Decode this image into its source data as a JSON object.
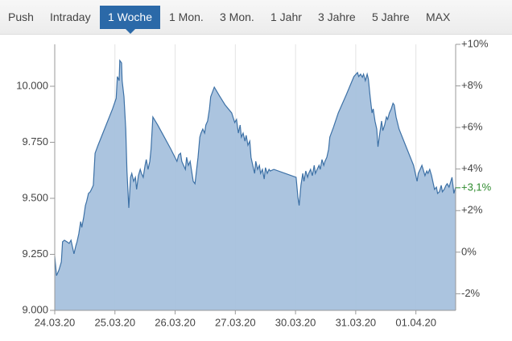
{
  "tabs": {
    "items": [
      "Push",
      "Intraday",
      "1 Woche",
      "1 Mon.",
      "3 Mon.",
      "1 Jahr",
      "3 Jahre",
      "5 Jahre",
      "MAX"
    ],
    "active": 2
  },
  "chart_data": {
    "type": "area",
    "x": [
      0,
      0.03,
      0.07,
      0.11,
      0.13,
      0.16,
      0.2,
      0.24,
      0.27,
      0.29,
      0.32,
      0.35,
      0.37,
      0.4,
      0.43,
      0.45,
      0.48,
      0.51,
      0.53,
      0.56,
      0.59,
      0.61,
      0.64,
      0.67,
      0.72,
      0.8,
      0.88,
      0.96,
      1.02,
      1.04,
      1.07,
      1.08,
      1.11,
      1.12,
      1.15,
      1.18,
      1.2,
      1.23,
      1.26,
      1.28,
      1.31,
      1.34,
      1.36,
      1.39,
      1.42,
      1.44,
      1.47,
      1.5,
      1.52,
      1.55,
      1.58,
      1.6,
      1.63,
      1.71,
      1.82,
      1.93,
      2.03,
      2.06,
      2.09,
      2.11,
      2.14,
      2.17,
      2.19,
      2.22,
      2.25,
      2.27,
      2.3,
      2.33,
      2.35,
      2.38,
      2.41,
      2.43,
      2.46,
      2.49,
      2.51,
      2.54,
      2.57,
      2.59,
      2.65,
      2.73,
      2.83,
      2.94,
      2.99,
      3.02,
      3.05,
      3.08,
      3.1,
      3.13,
      3.16,
      3.18,
      3.21,
      3.24,
      3.26,
      3.29,
      3.32,
      3.34,
      3.37,
      3.4,
      3.42,
      3.45,
      3.48,
      3.5,
      3.53,
      3.56,
      3.58,
      3.64,
      4.01,
      4.04,
      4.06,
      4.09,
      4.12,
      4.14,
      4.17,
      4.2,
      4.22,
      4.25,
      4.28,
      4.31,
      4.33,
      4.36,
      4.39,
      4.41,
      4.44,
      4.47,
      4.49,
      4.52,
      4.55,
      4.57,
      4.63,
      4.71,
      4.84,
      4.97,
      5.03,
      5.05,
      5.08,
      5.11,
      5.13,
      5.16,
      5.19,
      5.21,
      5.24,
      5.27,
      5.29,
      5.32,
      5.35,
      5.37,
      5.4,
      5.43,
      5.45,
      5.48,
      5.51,
      5.53,
      5.56,
      5.59,
      5.62,
      5.64,
      5.67,
      5.72,
      5.8,
      5.88,
      5.96,
      6.02,
      6.04,
      6.07,
      6.1,
      6.12,
      6.15,
      6.18,
      6.2,
      6.23,
      6.26,
      6.28,
      6.31,
      6.34,
      6.36,
      6.39,
      6.42,
      6.44,
      6.47,
      6.5,
      6.52,
      6.55,
      6.58,
      6.6,
      6.63,
      6.66
    ],
    "values": [
      9241,
      9155,
      9180,
      9216,
      9306,
      9313,
      9306,
      9299,
      9313,
      9288,
      9252,
      9288,
      9306,
      9342,
      9396,
      9370,
      9414,
      9468,
      9486,
      9522,
      9529,
      9540,
      9558,
      9701,
      9737,
      9791,
      9845,
      9899,
      9946,
      10043,
      10025,
      10115,
      10104,
      10025,
      9953,
      9809,
      9622,
      9457,
      9594,
      9611,
      9576,
      9594,
      9540,
      9601,
      9629,
      9611,
      9594,
      9647,
      9673,
      9629,
      9665,
      9719,
      9863,
      9827,
      9773,
      9719,
      9665,
      9694,
      9701,
      9665,
      9647,
      9629,
      9683,
      9647,
      9665,
      9629,
      9576,
      9565,
      9611,
      9683,
      9773,
      9791,
      9809,
      9791,
      9827,
      9845,
      9899,
      9953,
      9996,
      9960,
      9917,
      9881,
      9838,
      9852,
      9791,
      9827,
      9773,
      9791,
      9755,
      9781,
      9737,
      9755,
      9683,
      9647,
      9611,
      9665,
      9629,
      9647,
      9611,
      9629,
      9586,
      9637,
      9611,
      9629,
      9622,
      9629,
      9594,
      9504,
      9468,
      9558,
      9611,
      9576,
      9622,
      9594,
      9611,
      9629,
      9601,
      9647,
      9611,
      9629,
      9647,
      9629,
      9673,
      9647,
      9665,
      9683,
      9719,
      9773,
      9817,
      9881,
      9960,
      10043,
      10061,
      10043,
      10054,
      10040,
      10054,
      10025,
      10054,
      10032,
      9953,
      9881,
      9899,
      9845,
      9809,
      9730,
      9791,
      9845,
      9802,
      9827,
      9863,
      9852,
      9881,
      9899,
      9924,
      9917,
      9863,
      9809,
      9755,
      9701,
      9647,
      9576,
      9611,
      9629,
      9647,
      9629,
      9601,
      9622,
      9611,
      9629,
      9601,
      9576,
      9540,
      9550,
      9522,
      9529,
      9558,
      9529,
      9540,
      9558,
      9565,
      9550,
      9576,
      9594,
      9522,
      9550
    ],
    "color": "#3d71a6",
    "fill": "#a7c1dd",
    "xlim": [
      0,
      6.66
    ],
    "xticks": [
      {
        "value": 0,
        "label": "24.03.20"
      },
      {
        "value": 1,
        "label": "25.03.20"
      },
      {
        "value": 2,
        "label": "26.03.20"
      },
      {
        "value": 3,
        "label": "27.03.20"
      },
      {
        "value": 4,
        "label": "30.03.20"
      },
      {
        "value": 5,
        "label": "31.03.20"
      },
      {
        "value": 6,
        "label": "01.04.20"
      }
    ],
    "ylim": [
      9000,
      10187
    ],
    "yticks": [
      {
        "value": 9000,
        "label": "9.000"
      },
      {
        "value": 9250,
        "label": "9.250"
      },
      {
        "value": 9500,
        "label": "9.500"
      },
      {
        "value": 9750,
        "label": "9.750"
      },
      {
        "value": 10000,
        "label": "10.000"
      }
    ],
    "y2lim": [
      -2.8,
      10
    ],
    "y2ticks": [
      {
        "value": -2,
        "label": "-2%"
      },
      {
        "value": 0,
        "label": "0%"
      },
      {
        "value": 2,
        "label": "+2%"
      },
      {
        "value": 4,
        "label": "+4%"
      },
      {
        "value": 6,
        "label": "+6%"
      },
      {
        "value": 8,
        "label": "+8%"
      },
      {
        "value": 10,
        "label": "+10%"
      }
    ],
    "current_change": {
      "value": 3.1,
      "label": "+3,1%",
      "color": "#2e8b2e"
    },
    "grid": true
  }
}
